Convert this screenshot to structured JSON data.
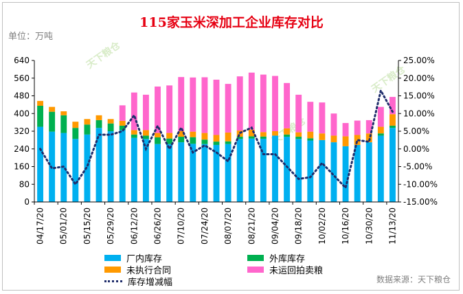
{
  "chart_data": {
    "type": "bar",
    "title": "115家玉米深加工企业库存对比",
    "unit_label": "单位：万吨",
    "source": "数据来源：天下粮仓",
    "watermark": "天下粮仓",
    "categories": [
      "04/17/20",
      "04/24/20",
      "05/01/20",
      "05/08/20",
      "05/15/20",
      "05/22/20",
      "05/29/20",
      "06/05/20",
      "06/12/20",
      "06/19/20",
      "06/26/20",
      "07/03/20",
      "07/10/20",
      "07/17/20",
      "07/24/20",
      "07/31/20",
      "08/07/20",
      "08/14/20",
      "08/21/20",
      "08/28/20",
      "09/04/20",
      "09/11/20",
      "09/18/20",
      "09/25/20",
      "10/02/20",
      "10/09/20",
      "10/16/20",
      "10/23/20",
      "10/30/20",
      "11/06/20",
      "11/13/20"
    ],
    "tick_labels": [
      "04/17/20",
      "05/01/20",
      "05/15/20",
      "05/29/20",
      "06/12/20",
      "06/26/20",
      "07/10/20",
      "07/24/20",
      "08/07/20",
      "08/21/20",
      "09/04/20",
      "09/18/20",
      "10/02/20",
      "10/16/20",
      "10/30/20",
      "11/13/20"
    ],
    "ylim_left": [
      0,
      640
    ],
    "yticks_left": [
      "0",
      "80",
      "160",
      "240",
      "320",
      "400",
      "480",
      "560",
      "640"
    ],
    "ylim_right": [
      -0.15,
      0.25
    ],
    "yticks_right": [
      "-15.00%",
      "-10.00%",
      "-5.00%",
      "0.00%",
      "5.00%",
      "10.00%",
      "15.00%",
      "20.00%",
      "25.00%"
    ],
    "series": [
      {
        "name": "厂内库存",
        "color": "#00b0f0",
        "axis": "left",
        "values": [
          340,
          318,
          312,
          285,
          305,
          335,
          320,
          325,
          290,
          285,
          262,
          262,
          270,
          263,
          262,
          258,
          262,
          285,
          287,
          286,
          300,
          295,
          285,
          278,
          280,
          270,
          252,
          258,
          270,
          300,
          335
        ]
      },
      {
        "name": "外库库存",
        "color": "#00b050",
        "axis": "left",
        "values": [
          95,
          90,
          80,
          50,
          45,
          35,
          35,
          20,
          15,
          15,
          30,
          25,
          25,
          30,
          20,
          15,
          12,
          10,
          10,
          10,
          0,
          10,
          10,
          10,
          0,
          0,
          0,
          0,
          0,
          10,
          10
        ]
      },
      {
        "name": "未执行合同",
        "color": "#ff9900",
        "axis": "left",
        "values": [
          22,
          22,
          18,
          28,
          25,
          22,
          20,
          22,
          20,
          25,
          20,
          25,
          25,
          25,
          30,
          30,
          40,
          28,
          30,
          20,
          20,
          28,
          20,
          30,
          30,
          30,
          45,
          45,
          40,
          30,
          52
        ]
      },
      {
        "name": "未运回拍卖粮",
        "color": "#ff66cc",
        "axis": "left",
        "values": [
          0,
          0,
          0,
          0,
          0,
          0,
          0,
          70,
          170,
          160,
          210,
          215,
          245,
          245,
          252,
          250,
          220,
          245,
          258,
          260,
          250,
          205,
          170,
          135,
          140,
          100,
          60,
          65,
          60,
          90,
          78
        ]
      },
      {
        "name": "库存增减幅",
        "color": "#1f2d6b",
        "axis": "right",
        "style": "dotted-line",
        "values": [
          0.0,
          -0.055,
          -0.05,
          -0.1,
          -0.05,
          0.04,
          0.04,
          0.05,
          0.095,
          0.0,
          0.065,
          0.0,
          0.06,
          -0.01,
          0.01,
          -0.01,
          -0.035,
          0.045,
          0.06,
          -0.015,
          -0.015,
          -0.05,
          -0.085,
          -0.08,
          -0.04,
          -0.075,
          -0.11,
          0.025,
          0.02,
          0.165,
          0.105
        ]
      }
    ],
    "legend": [
      "厂内库存",
      "外库库存",
      "未执行合同",
      "未运回拍卖粮",
      "库存增减幅"
    ],
    "legend_placement": "bottom",
    "grid": false
  }
}
